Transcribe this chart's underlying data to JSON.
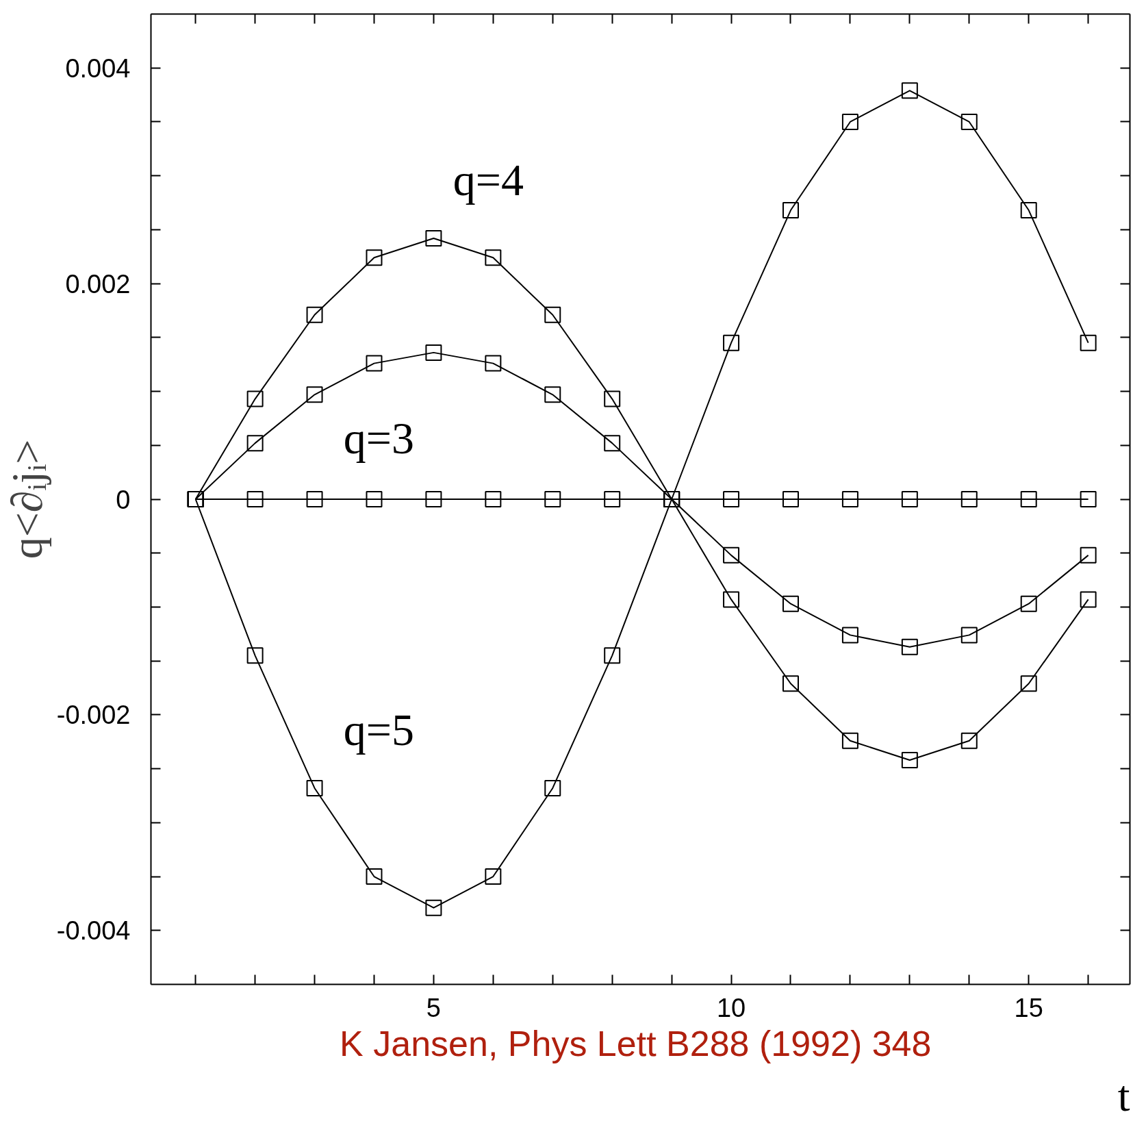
{
  "chart_data": {
    "type": "line",
    "xlabel": "t",
    "ylabel": "q<∂ᵢjᵢ>",
    "x": [
      1,
      2,
      3,
      4,
      5,
      6,
      7,
      8,
      9,
      10,
      11,
      12,
      13,
      14,
      15,
      16
    ],
    "series": [
      {
        "name": "q=3",
        "color": "#000000",
        "values": [
          0,
          0.00052,
          0.00097,
          0.00126,
          0.00136,
          0.00126,
          0.00097,
          0.00052,
          0,
          -0.00052,
          -0.00097,
          -0.00126,
          -0.00137,
          -0.00126,
          -0.00097,
          -0.00052
        ]
      },
      {
        "name": "q=4",
        "color": "#000000",
        "values": [
          0,
          0.00093,
          0.00171,
          0.00224,
          0.00242,
          0.00224,
          0.00171,
          0.00093,
          0,
          -0.00093,
          -0.00171,
          -0.00224,
          -0.00242,
          -0.00224,
          -0.00171,
          -0.00093
        ]
      },
      {
        "name": "q=5",
        "color": "#000000",
        "values": [
          0,
          -0.00145,
          -0.00268,
          -0.0035,
          -0.00379,
          -0.0035,
          -0.00268,
          -0.00145,
          0,
          0.00145,
          0.00268,
          0.0035,
          0.00379,
          0.0035,
          0.00268,
          0.00145
        ]
      },
      {
        "color": "#000000",
        "values": [
          0,
          0,
          0,
          0,
          0,
          0,
          0,
          0,
          0,
          0,
          0,
          0,
          0,
          0,
          0,
          0
        ]
      }
    ],
    "marker": "square",
    "line_style": "solid",
    "grid": false,
    "xlim": [
      0.25,
      16.7
    ],
    "ylim": [
      -0.0045,
      0.0045
    ],
    "xticks": [
      {
        "value": 1,
        "label": null
      },
      {
        "value": 2,
        "label": null
      },
      {
        "value": 3,
        "label": null
      },
      {
        "value": 4,
        "label": null
      },
      5,
      {
        "value": 6,
        "label": null
      },
      {
        "value": 7,
        "label": null
      },
      {
        "value": 8,
        "label": null
      },
      {
        "value": 9,
        "label": null
      },
      10,
      {
        "value": 11,
        "label": null
      },
      {
        "value": 12,
        "label": null
      },
      {
        "value": 13,
        "label": null
      },
      {
        "value": 14,
        "label": null
      },
      15,
      {
        "value": 16,
        "label": null
      }
    ],
    "yticks": [
      -0.004,
      {
        "value": -0.0035,
        "label": null
      },
      {
        "value": -0.003,
        "label": null
      },
      {
        "value": -0.0025,
        "label": null
      },
      -0.002,
      {
        "value": -0.0015,
        "label": null
      },
      {
        "value": -0.001,
        "label": null
      },
      {
        "value": -0.0005,
        "label": null
      },
      0,
      {
        "value": 0.0005,
        "label": null
      },
      {
        "value": 0.001,
        "label": null
      },
      {
        "value": 0.0015,
        "label": null
      },
      0.002,
      {
        "value": 0.0025,
        "label": null
      },
      {
        "value": 0.003,
        "label": null
      },
      {
        "value": 0.0035,
        "label": null
      },
      0.004
    ],
    "annotations": [
      "K  Jansen, Phys Lett B288 (1992) 348"
    ]
  }
}
